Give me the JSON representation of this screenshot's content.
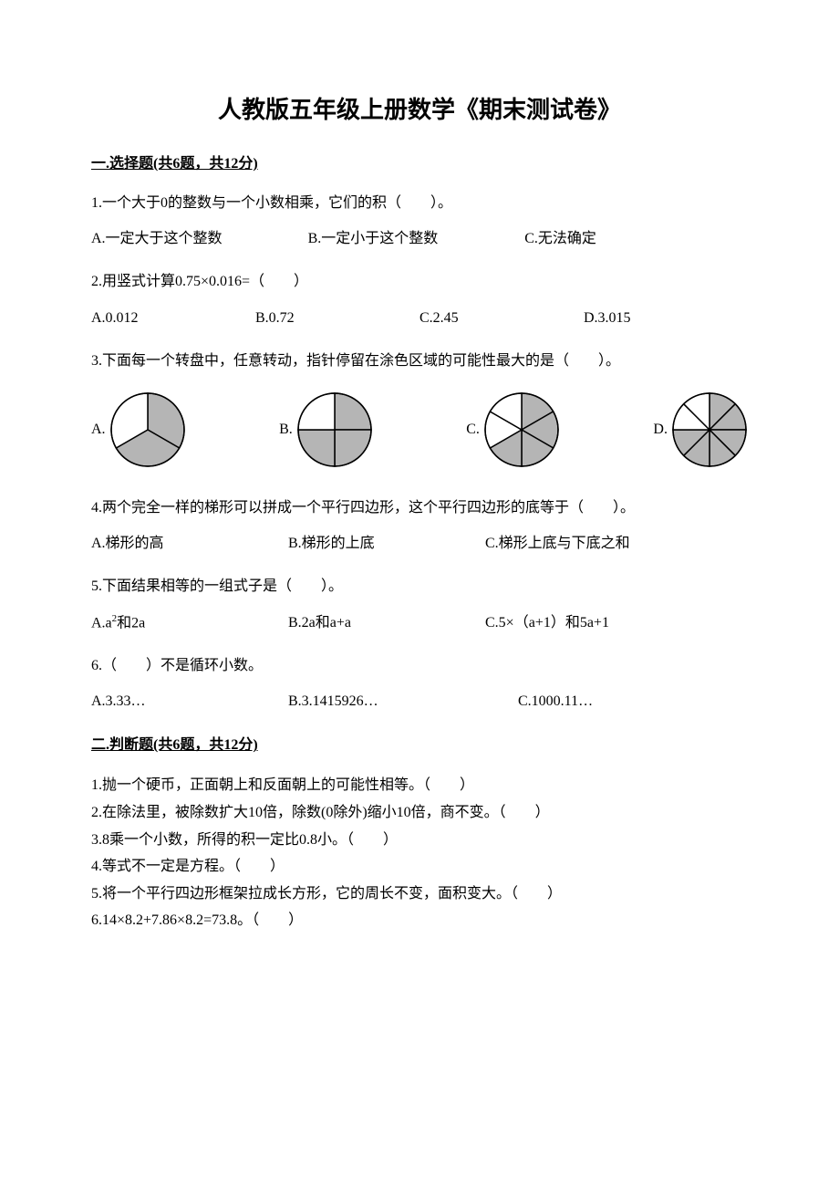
{
  "doc": {
    "title": "人教版五年级上册数学《期末测试卷》",
    "colors": {
      "text": "#000000",
      "background": "#ffffff",
      "pie_fill": "#b5b5b5",
      "pie_stroke": "#000000",
      "pie_empty": "#ffffff"
    }
  },
  "section1": {
    "header": "一.选择题(共6题，共12分)",
    "q1": {
      "text": "1.一个大于0的整数与一个小数相乘，它们的积（　　）。",
      "A": "A.一定大于这个整数",
      "B": "B.一定小于这个整数",
      "C": "C.无法确定"
    },
    "q2": {
      "text": "2.用竖式计算0.75×0.016=（　　）",
      "A": "A.0.012",
      "B": "B.0.72",
      "C": "C.2.45",
      "D": "D.3.015"
    },
    "q3": {
      "text": "3.下面每一个转盘中，任意转动，指针停留在涂色区域的可能性最大的是（　　）。",
      "A": "A.",
      "B": "B.",
      "C": "C.",
      "D": "D.",
      "pies": {
        "A": {
          "sectors": 3,
          "shaded": [
            0,
            1
          ],
          "radius": 40
        },
        "B": {
          "sectors": 4,
          "shaded": [
            0,
            1,
            2
          ],
          "radius": 40
        },
        "C": {
          "sectors": 6,
          "shaded": [
            0,
            1,
            2,
            3
          ],
          "radius": 40
        },
        "D": {
          "sectors": 8,
          "shaded": [
            0,
            1,
            2,
            3,
            4,
            5
          ],
          "radius": 40
        }
      }
    },
    "q4": {
      "text": "4.两个完全一样的梯形可以拼成一个平行四边形，这个平行四边形的底等于（　　）。",
      "A": "A.梯形的高",
      "B": "B.梯形的上底",
      "C": "C.梯形上底与下底之和"
    },
    "q5": {
      "text": "5.下面结果相等的一组式子是（　　）。",
      "A": "A.a²和2a",
      "B": "B.2a和a+a",
      "C": "C.5×（a+1）和5a+1"
    },
    "q6": {
      "text": "6.（　　）不是循环小数。",
      "A": "A.3.33…",
      "B": "B.3.1415926…",
      "C": "C.1000.11…"
    }
  },
  "section2": {
    "header": "二.判断题(共6题，共12分)",
    "items": [
      "1.抛一个硬币，正面朝上和反面朝上的可能性相等。（　　）",
      "2.在除法里，被除数扩大10倍，除数(0除外)缩小10倍，商不变。（　　）",
      "3.8乘一个小数，所得的积一定比0.8小。（　　）",
      "4.等式不一定是方程。（　　）",
      "5.将一个平行四边形框架拉成长方形，它的周长不变，面积变大。（　　）",
      "6.14×8.2+7.86×8.2=73.8。（　　）"
    ]
  }
}
